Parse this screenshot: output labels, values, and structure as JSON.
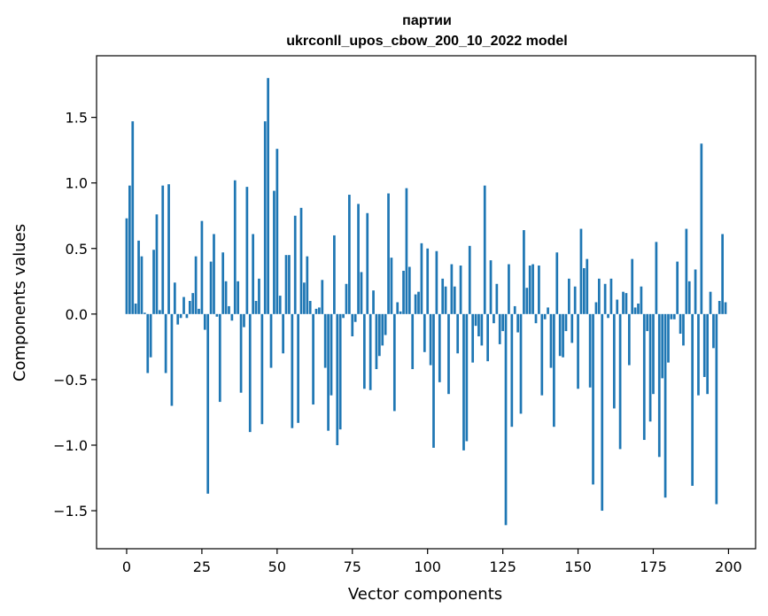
{
  "chart_data": {
    "type": "bar",
    "title_line1": "партии",
    "title_line2": "ukrconll_upos_cbow_200_10_2022 model",
    "xlabel": "Vector components",
    "ylabel": "Components values",
    "xlim": [
      -10,
      209
    ],
    "ylim": [
      -1.79,
      1.97
    ],
    "xticks": [
      0,
      25,
      50,
      75,
      100,
      125,
      150,
      175,
      200
    ],
    "xtick_labels": [
      "0",
      "25",
      "50",
      "75",
      "100",
      "125",
      "150",
      "175",
      "200"
    ],
    "yticks": [
      -1.5,
      -1.0,
      -0.5,
      0.0,
      0.5,
      1.0,
      1.5
    ],
    "ytick_labels": [
      "−1.5",
      "−1.0",
      "−0.5",
      "0.0",
      "0.5",
      "1.0",
      "1.5"
    ],
    "bar_color": "#1f77b4",
    "grid": false,
    "values": [
      0.73,
      0.98,
      1.47,
      0.08,
      0.56,
      0.44,
      0.01,
      -0.45,
      -0.33,
      0.49,
      0.76,
      0.03,
      0.98,
      -0.45,
      0.99,
      -0.7,
      0.24,
      -0.08,
      -0.03,
      0.13,
      -0.03,
      0.1,
      0.16,
      0.44,
      0.04,
      0.71,
      -0.12,
      -1.37,
      0.4,
      0.61,
      -0.02,
      -0.67,
      0.47,
      0.25,
      0.06,
      -0.05,
      1.02,
      0.25,
      -0.6,
      -0.1,
      0.97,
      -0.9,
      0.61,
      0.1,
      0.27,
      -0.84,
      1.47,
      1.8,
      -0.41,
      0.94,
      1.26,
      0.14,
      -0.3,
      0.45,
      0.45,
      -0.87,
      0.75,
      -0.83,
      0.81,
      0.24,
      0.44,
      0.1,
      -0.69,
      0.04,
      0.05,
      0.26,
      -0.41,
      -0.89,
      -0.62,
      0.6,
      -1.0,
      -0.88,
      -0.03,
      0.23,
      0.91,
      -0.17,
      -0.06,
      0.84,
      0.32,
      -0.57,
      0.77,
      -0.58,
      0.18,
      -0.42,
      -0.32,
      -0.24,
      -0.16,
      0.92,
      0.43,
      -0.74,
      0.09,
      0.02,
      0.33,
      0.96,
      0.36,
      -0.42,
      0.15,
      0.17,
      0.54,
      -0.29,
      0.5,
      -0.39,
      -1.02,
      0.48,
      -0.52,
      0.27,
      0.21,
      -0.61,
      0.38,
      0.21,
      -0.3,
      0.37,
      -1.04,
      -0.97,
      0.52,
      -0.37,
      -0.09,
      -0.17,
      -0.24,
      0.98,
      -0.36,
      0.41,
      -0.07,
      0.23,
      -0.23,
      -0.13,
      -1.61,
      0.38,
      -0.86,
      0.06,
      -0.14,
      -0.76,
      0.64,
      0.2,
      0.37,
      0.38,
      -0.07,
      0.37,
      -0.62,
      -0.04,
      0.05,
      -0.41,
      -0.86,
      0.47,
      -0.32,
      -0.33,
      -0.13,
      0.27,
      -0.22,
      0.21,
      -0.57,
      0.65,
      0.35,
      0.42,
      -0.56,
      -1.3,
      0.09,
      0.27,
      -1.5,
      0.23,
      -0.03,
      0.27,
      -0.72,
      0.11,
      -1.03,
      0.17,
      0.16,
      -0.39,
      0.42,
      0.05,
      0.08,
      0.21,
      -0.96,
      -0.13,
      -0.82,
      -0.61,
      0.55,
      -1.09,
      -0.49,
      -1.4,
      -0.37,
      -0.04,
      -0.04,
      0.4,
      -0.15,
      -0.24,
      0.65,
      0.25,
      -1.31,
      0.34,
      -0.62,
      1.3,
      -0.48,
      -0.61,
      0.17,
      -0.26,
      -1.45,
      0.1,
      0.61,
      0.09
    ]
  }
}
